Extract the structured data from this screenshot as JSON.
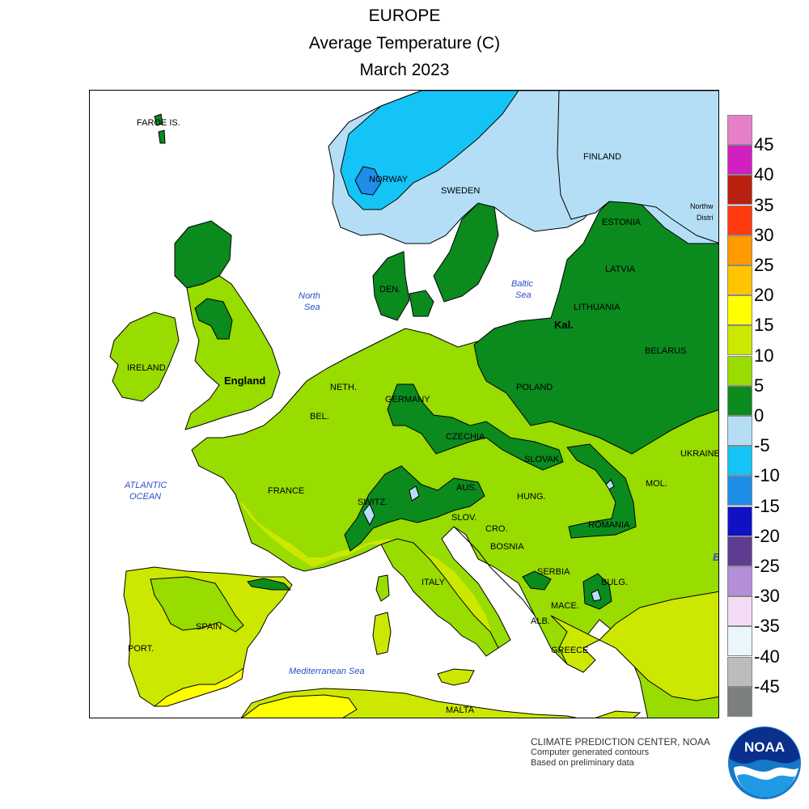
{
  "title": {
    "line1": "EUROPE",
    "line2": "Average Temperature (C)",
    "line3": "March 2023"
  },
  "legend": {
    "colors": [
      "#e77fc8",
      "#d020c0",
      "#b82010",
      "#ff3a10",
      "#ff9a00",
      "#ffc400",
      "#ffff00",
      "#cce800",
      "#98dc00",
      "#0b8a1e",
      "#b4def6",
      "#14c4f6",
      "#1e8ee8",
      "#1010c4",
      "#5e3c92",
      "#b48ed8",
      "#f4dcf4",
      "#eaf6fc",
      "#bcbcbc",
      "#7c8080"
    ],
    "ticks": [
      "45",
      "40",
      "35",
      "30",
      "25",
      "20",
      "15",
      "10",
      "5",
      "0",
      "-5",
      "-10",
      "-15",
      "-20",
      "-25",
      "-30",
      "-35",
      "-40",
      "-45"
    ]
  },
  "map": {
    "palette": {
      "ocean": "#ffffff",
      "cold": "#b4def6",
      "very_cold": "#14c4f6",
      "colder": "#1e8ee8",
      "band_0_5": "#0b8a1e",
      "band_5_10": "#98dc00",
      "band_10_15": "#cce800",
      "band_15_20": "#ffff00",
      "coast": "#000000"
    },
    "labels": {
      "faroe": "FAROE IS.",
      "norway": "NORWAY",
      "sweden": "SWEDEN",
      "finland": "FINLAND",
      "northwest_distr": "Northw\nDistri",
      "estonia": "ESTONIA",
      "latvia": "LATVIA",
      "lithuania": "LITHUANIA",
      "kal": "Kal.",
      "belarus": "BELARUS",
      "den": "DEN.",
      "north_sea": "North\nSea",
      "baltic_sea": "Baltic\nSea",
      "ireland": "IRELAND",
      "england": "England",
      "neth": "NETH.",
      "germany": "GERMANY",
      "poland": "POLAND",
      "bel": "BEL.",
      "czechia": "CZECHIA",
      "slovak": "SLOVAK.",
      "ukraine": "UKRAINE",
      "atlantic": "ATLANTIC\nOCEAN",
      "france": "FRANCE",
      "aus": "AUS.",
      "switz": "SWITZ.",
      "hung": "HUNG.",
      "mol": "MOL.",
      "slov": "SLOV.",
      "cro": "CRO.",
      "romania": "ROMANIA",
      "bosnia": "BOSNIA",
      "serbia": "SERBIA",
      "bulg": "BULG.",
      "b": "B",
      "italy": "ITALY",
      "spain": "SPAIN",
      "mace": "MACE.",
      "alb": "ALB.",
      "port": "PORT.",
      "greece": "GREECE",
      "med_sea": "Mediterranean Sea",
      "malta": "MALTA"
    }
  },
  "credits": {
    "line1": "CLIMATE PREDICTION CENTER, NOAA",
    "line2": "Computer generated contours",
    "line3": "Based on preliminary data"
  },
  "logo": {
    "text": "NOAA"
  }
}
